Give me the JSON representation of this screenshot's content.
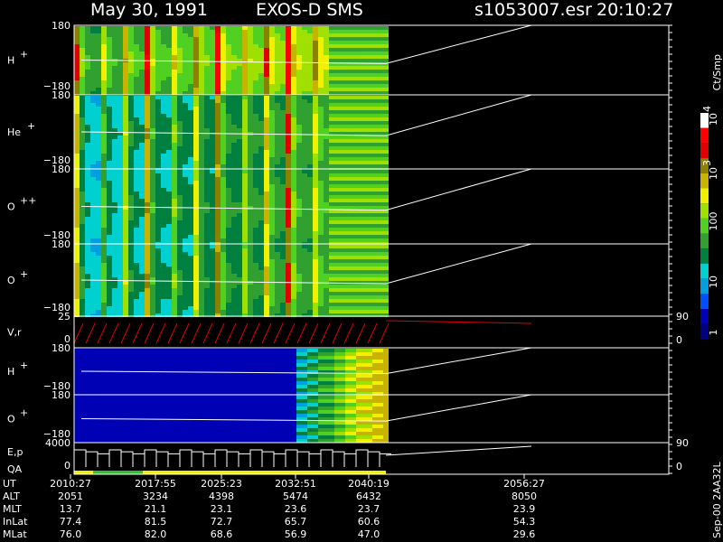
{
  "header": {
    "date": "May 30, 1991",
    "instrument": "EXOS-D SMS",
    "file": "s1053007.esr",
    "time": "20:10:27"
  },
  "panels": [
    {
      "label": "H",
      "sup": "+",
      "ticks": [
        "180",
        "−180"
      ]
    },
    {
      "label": "He",
      "sup": "+",
      "ticks": [
        "180",
        "−180"
      ]
    },
    {
      "label": "O",
      "sup": "++",
      "ticks": [
        "180",
        "−180"
      ]
    },
    {
      "label": "O",
      "sup": "+",
      "ticks": [
        "180",
        "−180"
      ]
    },
    {
      "label": "V,r",
      "ticks": [
        "25",
        "0"
      ],
      "right_ticks": [
        "90",
        "0"
      ]
    },
    {
      "label": "H",
      "sup": "+",
      "ticks": [
        "180",
        "−180"
      ]
    },
    {
      "label": "O",
      "sup": "+",
      "ticks": [
        "180",
        "−180"
      ]
    },
    {
      "label": "E,p",
      "label2": "QA",
      "ticks": [
        "4000",
        "0"
      ],
      "right_ticks": [
        "90",
        "0"
      ]
    }
  ],
  "colorbar": {
    "unit": "Ct/Smp",
    "labels": [
      {
        "base": "10",
        "exp": "4"
      },
      {
        "base": "10",
        "exp": "3"
      },
      {
        "base": "100"
      },
      {
        "base": "10"
      },
      {
        "base": "1"
      }
    ]
  },
  "ephemeris": {
    "row_labels": [
      "UT",
      "ALT",
      "MLT",
      "InLat",
      "MLat"
    ],
    "columns": [
      [
        "2010:27",
        "2051",
        "13.7",
        "77.4",
        "76.0"
      ],
      [
        "2017:55",
        "3234",
        "21.1",
        "81.5",
        "82.0"
      ],
      [
        "2025:23",
        "4398",
        "23.1",
        "72.7",
        "68.6"
      ],
      [
        "2032:51",
        "5474",
        "23.6",
        "65.7",
        "56.9"
      ],
      [
        "2040:19",
        "6432",
        "23.7",
        "60.6",
        "47.0"
      ],
      [
        "2056:27",
        "8050",
        "23.9",
        "54.3",
        "29.6"
      ]
    ]
  },
  "side_note": "Sep-00  2AA32L"
}
